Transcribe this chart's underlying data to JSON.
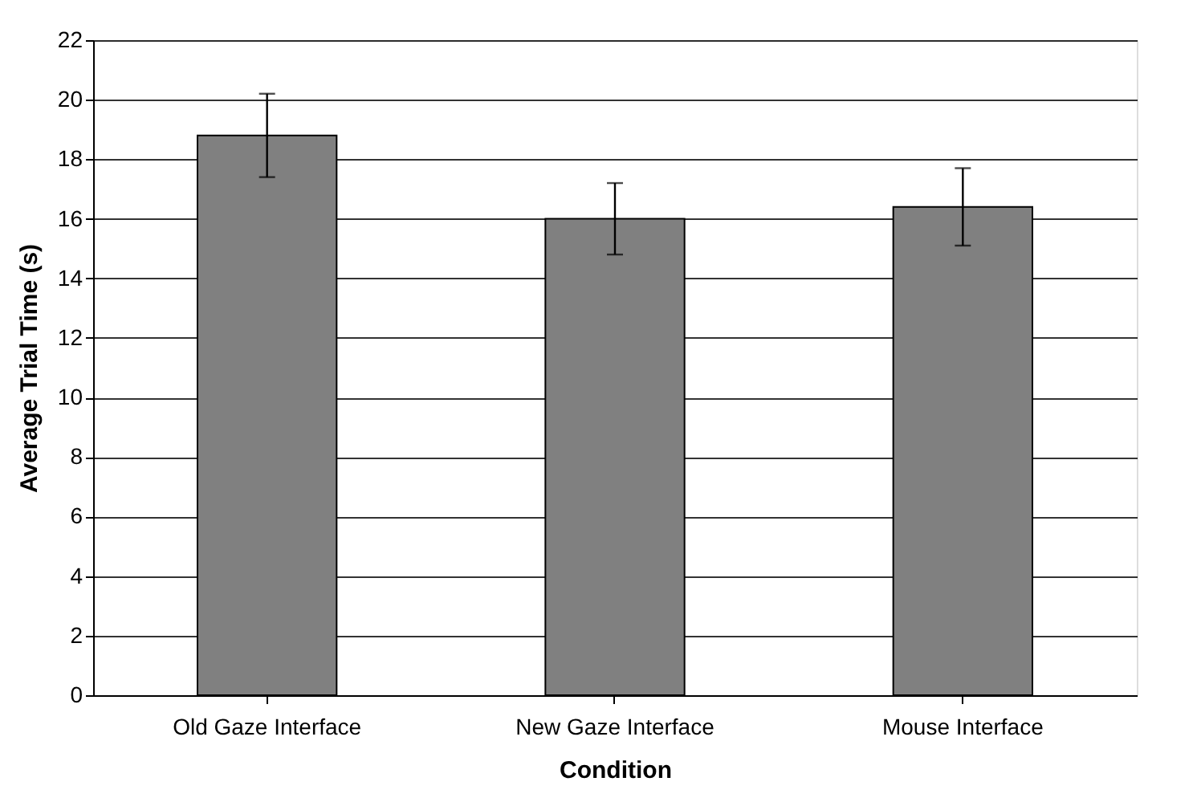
{
  "chart_data": {
    "type": "bar",
    "xlabel": "Condition",
    "ylabel": "Average Trial Time (s)",
    "categories": [
      "Old Gaze Interface",
      "New Gaze Interface",
      "Mouse Interface"
    ],
    "values": [
      18.8,
      16.0,
      16.4
    ],
    "errors": [
      1.4,
      1.2,
      1.3
    ],
    "color": "#808080",
    "ylim": [
      0,
      22
    ],
    "yticks": [
      0,
      2,
      4,
      6,
      8,
      10,
      12,
      14,
      16,
      18,
      20,
      22
    ],
    "grid": "y"
  }
}
